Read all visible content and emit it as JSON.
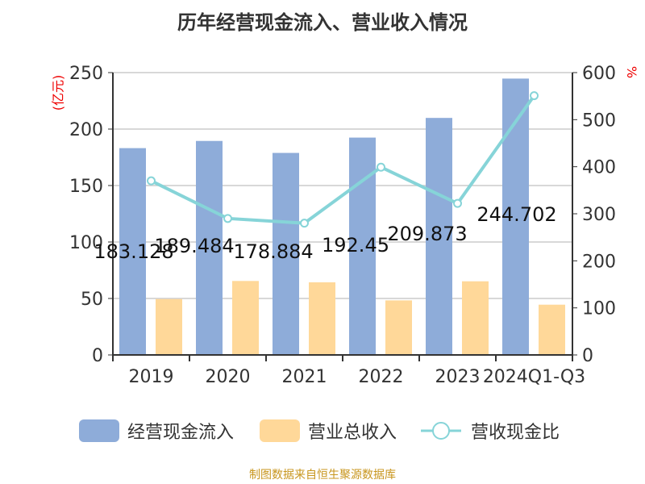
{
  "chart_data": {
    "type": "bar",
    "title": "历年经营现金流入、营业收入情况",
    "categories": [
      "2019",
      "2020",
      "2021",
      "2022",
      "2023",
      "2024Q1-Q3"
    ],
    "left_axis": {
      "label": "(亿元)",
      "range": [
        0,
        250
      ],
      "ticks": [
        0,
        50,
        100,
        150,
        200,
        250
      ]
    },
    "right_axis": {
      "label": "%",
      "range": [
        0,
        600
      ],
      "ticks": [
        0,
        100,
        200,
        300,
        400,
        500,
        600
      ]
    },
    "grid": true,
    "legend_placement": "bottom",
    "series": [
      {
        "name": "经营现金流入",
        "type": "bar",
        "axis": "left",
        "color": "#8eacd9",
        "values": [
          183.128,
          189.484,
          178.884,
          192.45,
          209.873,
          244.702
        ],
        "data_labels": [
          "183.128",
          "189.484",
          "178.884",
          "192.45",
          "209.873",
          "244.702"
        ]
      },
      {
        "name": "营业总收入",
        "type": "bar",
        "axis": "left",
        "color": "#ffd899",
        "values": [
          49.5,
          65.5,
          64.3,
          48.3,
          65.2,
          44.5
        ]
      },
      {
        "name": "营收现金比",
        "type": "line",
        "axis": "right",
        "color": "#86d4d8",
        "values": [
          370,
          290,
          280,
          399,
          322,
          551
        ]
      }
    ]
  },
  "source": "制图数据来自恒生聚源数据库"
}
